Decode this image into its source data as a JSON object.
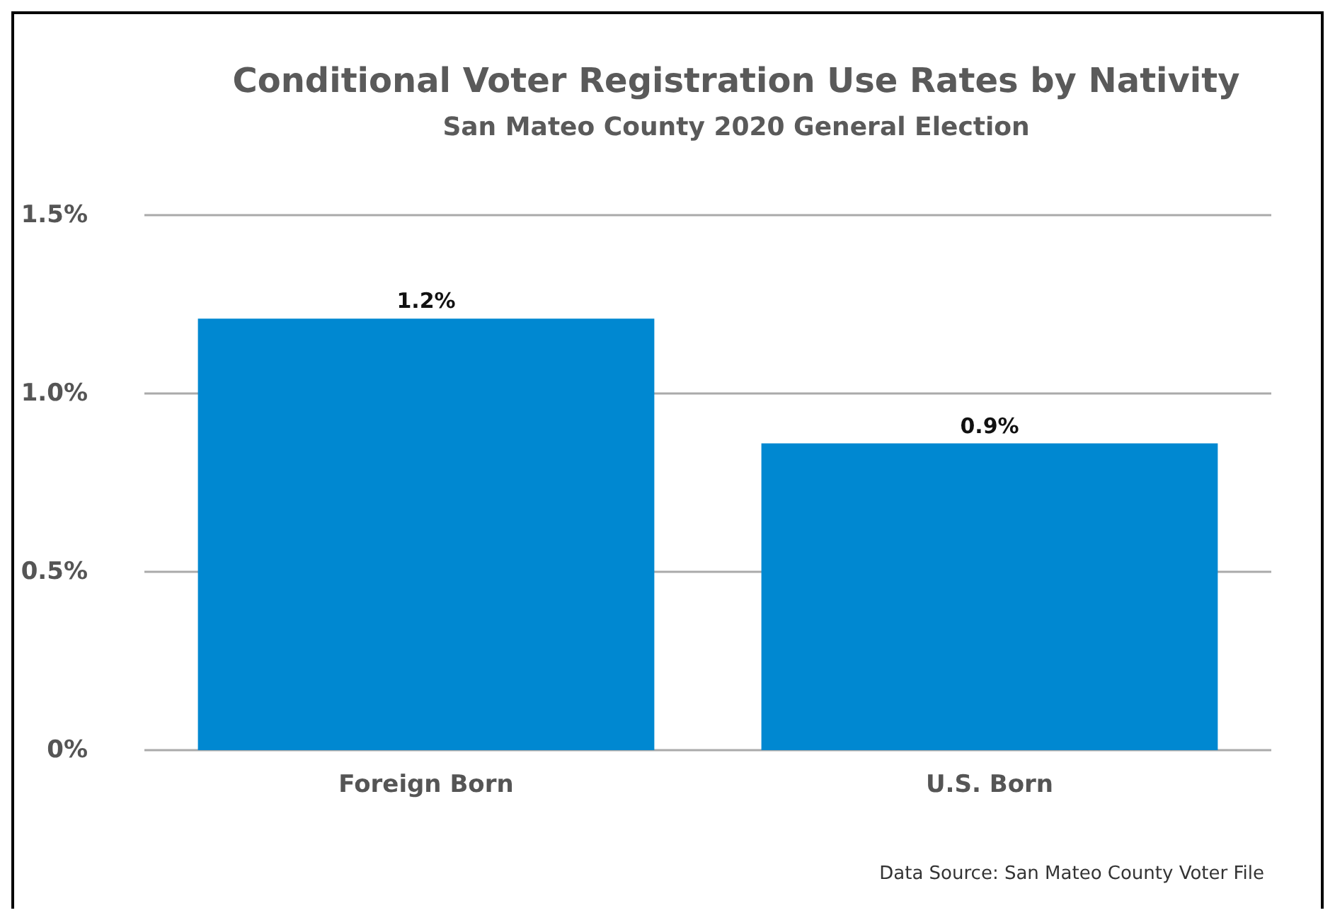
{
  "chart_data": {
    "type": "bar",
    "title": "Conditional Voter Registration Use Rates by Nativity",
    "subtitle": "San Mateo County 2020 General Election",
    "categories": [
      "Foreign Born",
      "U.S. Born"
    ],
    "values": [
      1.21,
      0.86
    ],
    "value_labels": [
      "1.2%",
      "0.9%"
    ],
    "color": "#0088d1",
    "ylim": [
      0,
      1.5
    ],
    "yticks": [
      {
        "value": 0,
        "label": "0%"
      },
      {
        "value": 0.5,
        "label": "0.5%"
      },
      {
        "value": 1,
        "label": "1.0%"
      },
      {
        "value": 1.5,
        "label": "1.5%"
      }
    ],
    "grid": "y",
    "annotations": [
      "Data Source: San Mateo County Voter File"
    ]
  }
}
